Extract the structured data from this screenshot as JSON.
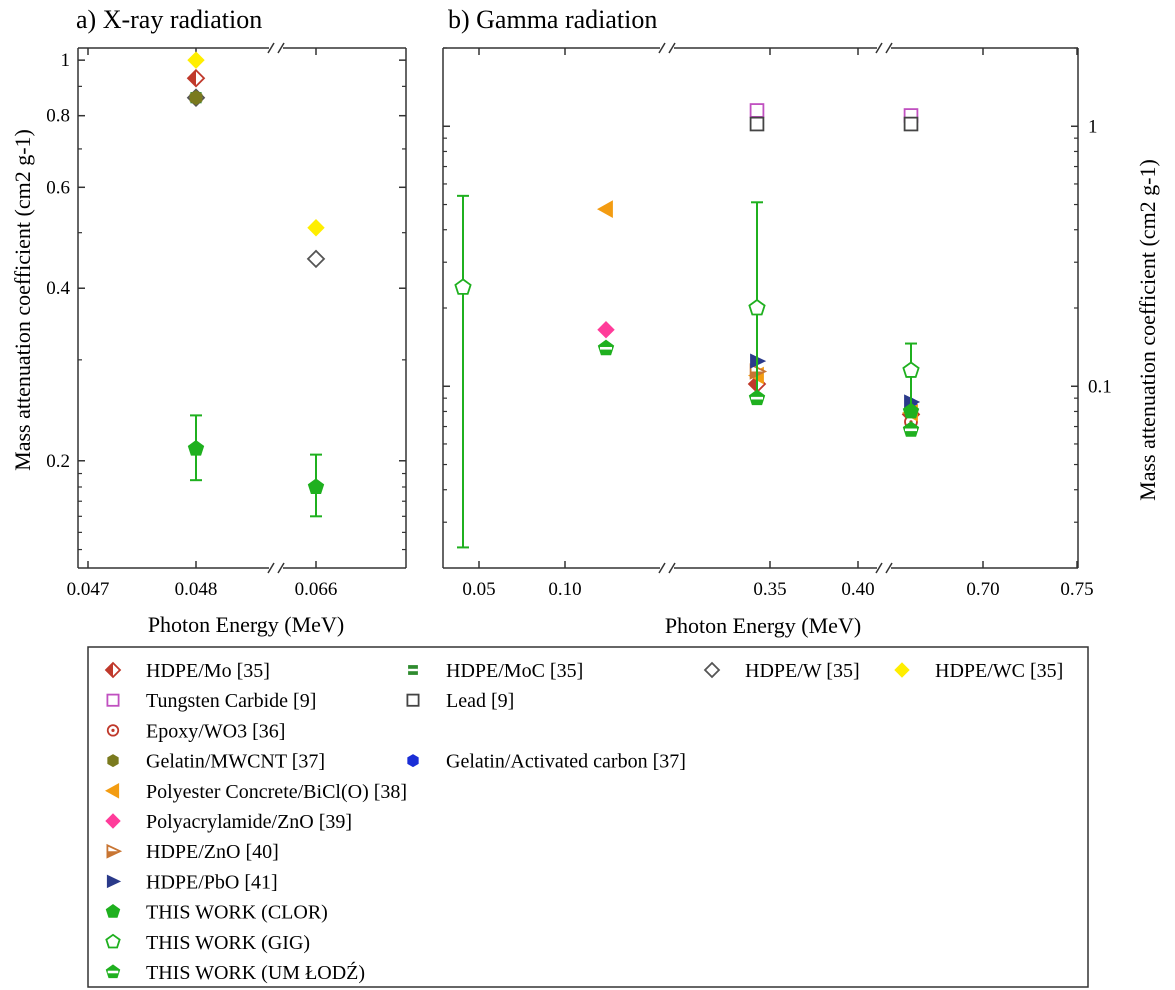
{
  "chart_data": [
    {
      "type": "scatter",
      "title": "a) X-ray radiation",
      "xlabel": "Photon Energy (MeV)",
      "ylabel": "Mass attenuation coefficient (cm2 g-1)",
      "yscale": "log",
      "ylim": [
        0.13,
        1.05
      ],
      "x_categories": [
        "0.047",
        "0.048",
        "0.066"
      ],
      "y_ticks": [
        0.2,
        0.4,
        0.6,
        0.8,
        1
      ],
      "y_tick_labels": [
        "0.2",
        "0.4",
        "0.6",
        "0.8",
        "1"
      ],
      "axis_break": "between 0.048 and 0.066",
      "series": [
        {
          "name": "HDPE/Mo [35]",
          "points": [
            {
              "x": "0.048",
              "y": 0.93
            }
          ]
        },
        {
          "name": "HDPE/MoC [35]",
          "points": [
            {
              "x": "0.048",
              "y": 0.86
            }
          ]
        },
        {
          "name": "HDPE/W [35]",
          "points": [
            {
              "x": "0.048",
              "y": 0.86
            },
            {
              "x": "0.066",
              "y": 0.45
            }
          ]
        },
        {
          "name": "HDPE/WC [35]",
          "points": [
            {
              "x": "0.048",
              "y": 1.0
            },
            {
              "x": "0.066",
              "y": 0.51
            }
          ]
        },
        {
          "name": "Gelatin/MWCNT [37]",
          "points": [
            {
              "x": "0.048",
              "y": 0.86
            }
          ]
        },
        {
          "name": "THIS WORK (CLOR)",
          "points": [
            {
              "x": "0.048",
              "y": 0.21,
              "err_low": 0.185,
              "err_high": 0.24
            },
            {
              "x": "0.066",
              "y": 0.18,
              "err_low": 0.16,
              "err_high": 0.205
            }
          ]
        }
      ]
    },
    {
      "type": "scatter",
      "title": "b) Gamma radiation",
      "xlabel": "Photon Energy (MeV)",
      "ylabel": "Mass attenuation coefficient (cm2 g-1)",
      "yscale": "log",
      "ylim": [
        0.02,
        2.0
      ],
      "x_categories": [
        "0.05",
        "0.10",
        "0.35",
        "0.40",
        "0.70",
        "0.75"
      ],
      "y_ticks": [
        0.1,
        1
      ],
      "y_tick_labels": [
        "0.1",
        "1"
      ],
      "axis_breaks": [
        "between 0.10 and 0.35",
        "between 0.40 and 0.70"
      ],
      "series": [
        {
          "name": "HDPE/Mo [35]",
          "points": [
            {
              "x": "0.36",
              "y": 0.102
            },
            {
              "x": "0.66",
              "y": 0.078
            }
          ]
        },
        {
          "name": "Tungsten Carbide [9]",
          "points": [
            {
              "x": "0.36",
              "y": 1.15
            },
            {
              "x": "0.66",
              "y": 1.1
            }
          ]
        },
        {
          "name": "Lead [9]",
          "points": [
            {
              "x": "0.36",
              "y": 1.02
            },
            {
              "x": "0.66",
              "y": 1.02
            }
          ]
        },
        {
          "name": "Epoxy/WO3 [36]",
          "points": [
            {
              "x": "0.66",
              "y": 0.073
            }
          ]
        },
        {
          "name": "Gelatin/MWCNT [37]",
          "points": [
            {
              "x": "0.66",
              "y": 0.082
            }
          ]
        },
        {
          "name": "Gelatin/Activated carbon [37]",
          "points": [
            {
              "x": "0.66",
              "y": 0.085
            }
          ]
        },
        {
          "name": "Polyester Concrete/BiCl(O) [38]",
          "points": [
            {
              "x": "0.15",
              "y": 0.48
            },
            {
              "x": "0.36",
              "y": 0.11
            },
            {
              "x": "0.66",
              "y": 0.079
            }
          ]
        },
        {
          "name": "Polyacrylamide/ZnO [39]",
          "points": [
            {
              "x": "0.15",
              "y": 0.165
            }
          ]
        },
        {
          "name": "HDPE/ZnO [40]",
          "points": [
            {
              "x": "0.36",
              "y": 0.114
            }
          ]
        },
        {
          "name": "HDPE/PbO [41]",
          "points": [
            {
              "x": "0.36",
              "y": 0.125
            },
            {
              "x": "0.66",
              "y": 0.087
            }
          ]
        },
        {
          "name": "THIS WORK (CLOR)",
          "points": [
            {
              "x": "0.66",
              "y": 0.08
            }
          ]
        },
        {
          "name": "THIS WORK (GIG)",
          "points": [
            {
              "x": "0.05",
              "y": 0.24,
              "err_low": 0.024,
              "err_high": 0.54
            },
            {
              "x": "0.36",
              "y": 0.2,
              "err_low": 0.09,
              "err_high": 0.51
            },
            {
              "x": "0.66",
              "y": 0.115,
              "err_low": 0.082,
              "err_high": 0.146
            }
          ]
        },
        {
          "name": "THIS WORK (UM ŁODŹ)",
          "points": [
            {
              "x": "0.15",
              "y": 0.14
            },
            {
              "x": "0.36",
              "y": 0.09
            },
            {
              "x": "0.66",
              "y": 0.068
            }
          ]
        }
      ]
    }
  ],
  "legend": {
    "placement": "bottom",
    "rows": [
      [
        {
          "label": "HDPE/Mo [35]",
          "marker": "diamond-half",
          "color": "#c0392b"
        },
        {
          "label": "HDPE/MoC [35]",
          "marker": "circle-half-stripe",
          "color": "#2e8b2e"
        },
        {
          "label": "HDPE/W [35]",
          "marker": "diamond-open",
          "color": "#555555"
        },
        {
          "label": "HDPE/WC [35]",
          "marker": "diamond-filled",
          "color": "#ffee00"
        }
      ],
      [
        {
          "label": "Tungsten Carbide [9]",
          "marker": "square-open",
          "color": "#c050c0"
        },
        {
          "label": "Lead [9]",
          "marker": "square-open",
          "color": "#444444"
        }
      ],
      [
        {
          "label": "Epoxy/WO3 [36]",
          "marker": "circle-dot",
          "color": "#c0392b"
        }
      ],
      [
        {
          "label": "Gelatin/MWCNT [37]",
          "marker": "hexagon-filled",
          "color": "#7a7a1e"
        },
        {
          "label": "Gelatin/Activated carbon [37]",
          "marker": "hexagon-filled",
          "color": "#1a2ed6"
        }
      ],
      [
        {
          "label": "Polyester Concrete/BiCl(O) [38]",
          "marker": "triangle-left-filled",
          "color": "#f39c12"
        }
      ],
      [
        {
          "label": "Polyacrylamide/ZnO [39]",
          "marker": "diamond-filled",
          "color": "#ff3c9a"
        }
      ],
      [
        {
          "label": "HDPE/ZnO [40]",
          "marker": "triangle-right-half",
          "color": "#c87533"
        }
      ],
      [
        {
          "label": "HDPE/PbO [41]",
          "marker": "triangle-right-filled",
          "color": "#2a3a8a"
        }
      ],
      [
        {
          "label": "THIS WORK (CLOR)",
          "marker": "pentagon-filled",
          "color": "#1fb01f"
        }
      ],
      [
        {
          "label": "THIS WORK (GIG)",
          "marker": "pentagon-open",
          "color": "#1fb01f"
        }
      ],
      [
        {
          "label": "THIS WORK (UM ŁODŹ)",
          "marker": "pentagon-half",
          "color": "#1fb01f"
        }
      ]
    ]
  },
  "colors": {
    "axis": "#333333",
    "error_bar": "#1fb01f"
  }
}
